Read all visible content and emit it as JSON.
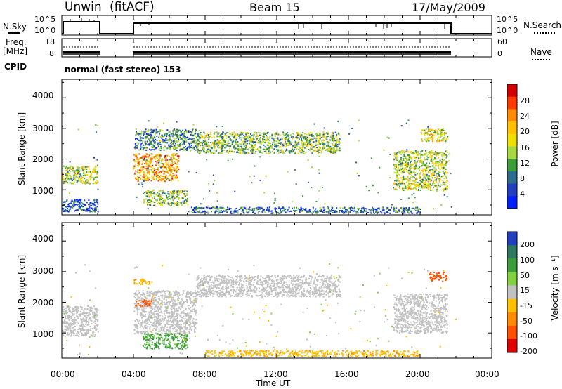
{
  "header": {
    "station": "Unwin",
    "method": "(fitACF)",
    "beam": "Beam 15",
    "date": "17/May/2009"
  },
  "noise_panel": {
    "left_label": "N.Sky",
    "left_ticks": [
      "10^5",
      "10^0"
    ],
    "right_ticks": [
      "10^5",
      "10^0"
    ],
    "right_label": "N.Search"
  },
  "freq_panel": {
    "left_label_1": "Freq.",
    "left_label_2": "[MHz]",
    "left_ticks": [
      "18",
      "8"
    ],
    "right_ticks": [
      "60",
      "0"
    ],
    "right_label": "Nave"
  },
  "cpid": {
    "label": "CPID",
    "value": "normal (fast stereo) 153"
  },
  "x_axis": {
    "tick_labels": [
      "00:00",
      "04:00",
      "08:00",
      "12:00",
      "16:00",
      "20:00",
      "00:00"
    ],
    "title": "Time UT"
  },
  "power_panel": {
    "ylabel": "Slant Range [km]",
    "y_ticks": [
      "4000",
      "3000",
      "2000",
      "1000"
    ],
    "colorbar_title": "Power [dB]",
    "colorbar_ticks": [
      "28",
      "24",
      "20",
      "16",
      "12",
      "8",
      "4"
    ],
    "colors": [
      "#d40000",
      "#ff3a00",
      "#ff8a00",
      "#ffc000",
      "#f0e000",
      "#a8d840",
      "#3c9c3c",
      "#2c6c8c",
      "#2040c0",
      "#0020ff"
    ]
  },
  "velocity_panel": {
    "ylabel": "Slant Range [km]",
    "y_ticks": [
      "4000",
      "3000",
      "2000",
      "1000"
    ],
    "colorbar_title": "Velocity [m s⁻¹]",
    "colorbar_ticks": [
      "200",
      "100",
      "50",
      "15",
      "-15",
      "-50",
      "-100",
      "-200"
    ],
    "colors": [
      "#2040c0",
      "#2c7860",
      "#3c9c3c",
      "#80d040",
      "#c0c0c0",
      "#ffc000",
      "#ff8a00",
      "#ff5000",
      "#e00000"
    ]
  },
  "chart_data": [
    {
      "type": "heatmap",
      "title": "Power [dB]",
      "xlabel": "Time UT",
      "ylabel": "Slant Range [km]",
      "xlim": [
        0,
        24
      ],
      "ylim": [
        180,
        4600
      ],
      "clim": [
        0,
        30
      ],
      "regions": [
        {
          "t": [
            0.0,
            2.0
          ],
          "r": [
            1200,
            1800
          ],
          "level": 16
        },
        {
          "t": [
            0.0,
            2.0
          ],
          "r": [
            300,
            700
          ],
          "level": 6
        },
        {
          "t": [
            4.0,
            6.5
          ],
          "r": [
            1300,
            2200
          ],
          "level": 22
        },
        {
          "t": [
            4.0,
            7.5
          ],
          "r": [
            2300,
            3000
          ],
          "level": 10
        },
        {
          "t": [
            4.5,
            7.0
          ],
          "r": [
            500,
            1000
          ],
          "level": 14
        },
        {
          "t": [
            7.5,
            15.5
          ],
          "r": [
            2200,
            2900
          ],
          "level": 14
        },
        {
          "t": [
            7.0,
            20.0
          ],
          "r": [
            250,
            450
          ],
          "level": 8
        },
        {
          "t": [
            18.5,
            21.5
          ],
          "r": [
            1000,
            2300
          ],
          "level": 16
        },
        {
          "t": [
            20.0,
            21.5
          ],
          "r": [
            2600,
            3000
          ],
          "level": 18
        }
      ]
    },
    {
      "type": "heatmap",
      "title": "Velocity [m s⁻¹]",
      "xlabel": "Time UT",
      "ylabel": "Slant Range [km]",
      "xlim": [
        0,
        24
      ],
      "ylim": [
        180,
        4600
      ],
      "clim": [
        -250,
        250
      ],
      "regions": [
        {
          "t": [
            0.0,
            2.0
          ],
          "r": [
            900,
            1900
          ],
          "value": 0
        },
        {
          "t": [
            4.0,
            7.5
          ],
          "r": [
            1000,
            2400
          ],
          "value": 0
        },
        {
          "t": [
            4.0,
            5.0
          ],
          "r": [
            1900,
            2100
          ],
          "value": -150
        },
        {
          "t": [
            4.0,
            5.0
          ],
          "r": [
            2600,
            2800
          ],
          "value": -40
        },
        {
          "t": [
            4.5,
            7.0
          ],
          "r": [
            500,
            1000
          ],
          "value": 60
        },
        {
          "t": [
            7.5,
            15.5
          ],
          "r": [
            2200,
            2900
          ],
          "value": 0
        },
        {
          "t": [
            8.0,
            20.0
          ],
          "r": [
            250,
            450
          ],
          "value": -40
        },
        {
          "t": [
            18.5,
            21.5
          ],
          "r": [
            1000,
            2300
          ],
          "value": 0
        },
        {
          "t": [
            20.5,
            21.5
          ],
          "r": [
            2700,
            3000
          ],
          "value": -150
        }
      ]
    }
  ]
}
